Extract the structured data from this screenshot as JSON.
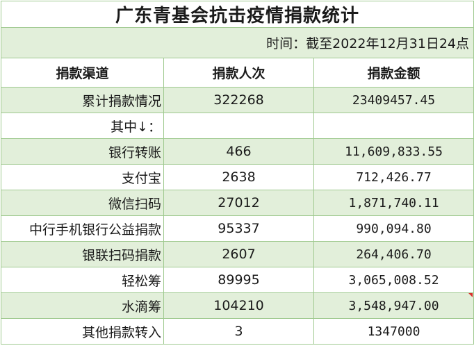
{
  "title": "广东青基会抗击疫情捐款统计",
  "time_note": "时间：截至2022年12月31日24点",
  "headers": [
    "捐款渠道",
    "捐款人次",
    "捐款金额"
  ],
  "rows": [
    {
      "channel": "累计捐款情况",
      "count": "322268",
      "amount": "23409457.45"
    },
    {
      "channel": "其中↓：",
      "count": "",
      "amount": ""
    },
    {
      "channel": "银行转账",
      "count": "466",
      "amount": "11,609,833.55"
    },
    {
      "channel": "支付宝",
      "count": "2638",
      "amount": "712,426.77"
    },
    {
      "channel": "微信扫码",
      "count": "27012",
      "amount": "1,871,740.11"
    },
    {
      "channel": "中行手机银行公益捐款",
      "count": "95337",
      "amount": "990,094.80"
    },
    {
      "channel": "银联扫码捐款",
      "count": "2607",
      "amount": "264,406.70"
    },
    {
      "channel": "轻松筹",
      "count": "89995",
      "amount": "3,065,008.52"
    },
    {
      "channel": "水滴筹",
      "count": "104210",
      "amount": "3,548,947.00"
    },
    {
      "channel": "其他捐款转入",
      "count": "3",
      "amount": "1347000"
    }
  ],
  "colors": {
    "band": "#e2efda",
    "grid": "#9fc98f",
    "comment_marker": "#d9302c"
  }
}
